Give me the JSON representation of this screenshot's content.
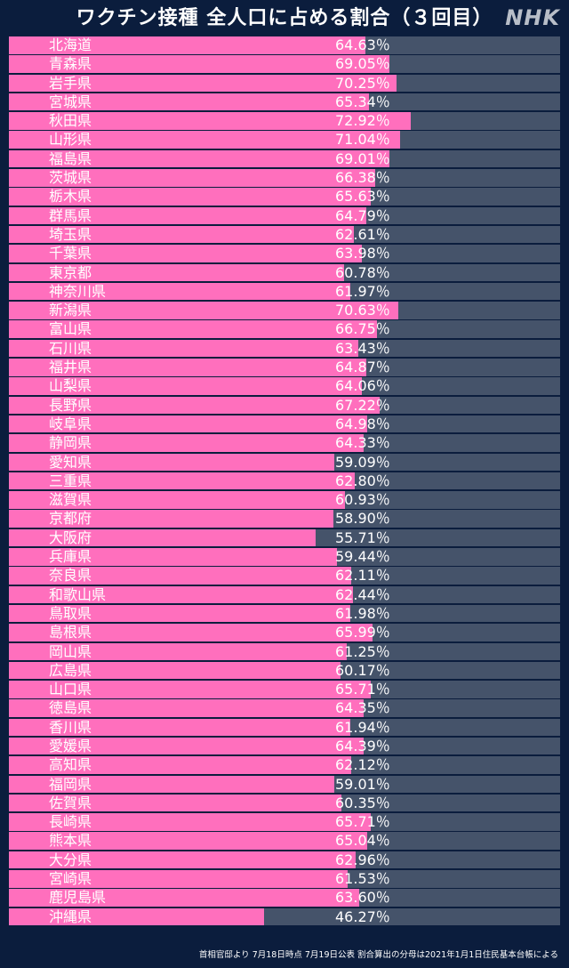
{
  "header": {
    "title": "ワクチン接種 全人口に占める割合（３回目）",
    "logo": "NHK"
  },
  "footer": {
    "source": "首相官邸より 7月18日時点 7月19日公表 割合算出の分母は2021年1月1日住民基本台帳による"
  },
  "colors": {
    "bar": "#ff6fbd",
    "track": "#45536a",
    "background": "#0b1d3d"
  },
  "chart_data": {
    "type": "bar",
    "orientation": "horizontal",
    "unit": "%",
    "xlim": [
      0,
      100
    ],
    "categories": [
      "北海道",
      "青森県",
      "岩手県",
      "宮城県",
      "秋田県",
      "山形県",
      "福島県",
      "茨城県",
      "栃木県",
      "群馬県",
      "埼玉県",
      "千葉県",
      "東京都",
      "神奈川県",
      "新潟県",
      "富山県",
      "石川県",
      "福井県",
      "山梨県",
      "長野県",
      "岐阜県",
      "静岡県",
      "愛知県",
      "三重県",
      "滋賀県",
      "京都府",
      "大阪府",
      "兵庫県",
      "奈良県",
      "和歌山県",
      "鳥取県",
      "島根県",
      "岡山県",
      "広島県",
      "山口県",
      "徳島県",
      "香川県",
      "愛媛県",
      "高知県",
      "福岡県",
      "佐賀県",
      "長崎県",
      "熊本県",
      "大分県",
      "宮崎県",
      "鹿児島県",
      "沖縄県"
    ],
    "values": [
      64.63,
      69.05,
      70.25,
      65.34,
      72.92,
      71.04,
      69.01,
      66.38,
      65.63,
      64.79,
      62.61,
      63.98,
      60.78,
      61.97,
      70.63,
      66.75,
      63.43,
      64.87,
      64.06,
      67.22,
      64.98,
      64.33,
      59.09,
      62.8,
      60.93,
      58.9,
      55.71,
      59.44,
      62.11,
      62.44,
      61.98,
      65.99,
      61.25,
      60.17,
      65.71,
      64.35,
      61.94,
      64.39,
      62.12,
      59.01,
      60.35,
      65.71,
      65.04,
      62.96,
      61.53,
      63.6,
      46.27
    ],
    "labels": [
      "64.63％",
      "69.05％",
      "70.25％",
      "65.34％",
      "72.92％",
      "71.04％",
      "69.01％",
      "66.38％",
      "65.63％",
      "64.79％",
      "62.61％",
      "63.98％",
      "60.78％",
      "61.97％",
      "70.63％",
      "66.75％",
      "63.43％",
      "64.87％",
      "64.06％",
      "67.22％",
      "64.98％",
      "64.33％",
      "59.09％",
      "62.80％",
      "60.93％",
      "58.90％",
      "55.71％",
      "59.44％",
      "62.11％",
      "62.44％",
      "61.98％",
      "65.99％",
      "61.25％",
      "60.17％",
      "65.71％",
      "64.35％",
      "61.94％",
      "64.39％",
      "62.12％",
      "59.01％",
      "60.35％",
      "65.71％",
      "65.04％",
      "62.96％",
      "61.53％",
      "63.60％",
      "46.27％"
    ]
  }
}
